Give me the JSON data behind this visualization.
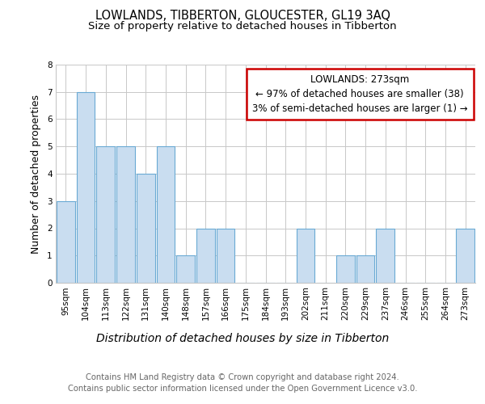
{
  "title": "LOWLANDS, TIBBERTON, GLOUCESTER, GL19 3AQ",
  "subtitle": "Size of property relative to detached houses in Tibberton",
  "xlabel": "Distribution of detached houses by size in Tibberton",
  "ylabel": "Number of detached properties",
  "categories": [
    "95sqm",
    "104sqm",
    "113sqm",
    "122sqm",
    "131sqm",
    "140sqm",
    "148sqm",
    "157sqm",
    "166sqm",
    "175sqm",
    "184sqm",
    "193sqm",
    "202sqm",
    "211sqm",
    "220sqm",
    "229sqm",
    "237sqm",
    "246sqm",
    "255sqm",
    "264sqm",
    "273sqm"
  ],
  "values": [
    3,
    7,
    5,
    5,
    4,
    5,
    1,
    2,
    2,
    0,
    0,
    0,
    2,
    0,
    1,
    1,
    2,
    0,
    0,
    0,
    2
  ],
  "bar_color": "#c9ddf0",
  "bar_edge_color": "#6aaad4",
  "annotation_title": "LOWLANDS: 273sqm",
  "annotation_line1": "← 97% of detached houses are smaller (38)",
  "annotation_line2": "3% of semi-detached houses are larger (1) →",
  "annotation_box_facecolor": "#ffffff",
  "annotation_box_edgecolor": "#cc0000",
  "ylim": [
    0,
    8
  ],
  "yticks": [
    0,
    1,
    2,
    3,
    4,
    5,
    6,
    7,
    8
  ],
  "footer_line1": "Contains HM Land Registry data © Crown copyright and database right 2024.",
  "footer_line2": "Contains public sector information licensed under the Open Government Licence v3.0.",
  "background_color": "#ffffff",
  "grid_color": "#c8c8c8",
  "title_fontsize": 10.5,
  "subtitle_fontsize": 9.5,
  "ylabel_fontsize": 9,
  "xlabel_fontsize": 10,
  "tick_fontsize": 7.5,
  "annotation_fontsize": 8.5,
  "footer_fontsize": 7.2,
  "footer_color": "#666666"
}
